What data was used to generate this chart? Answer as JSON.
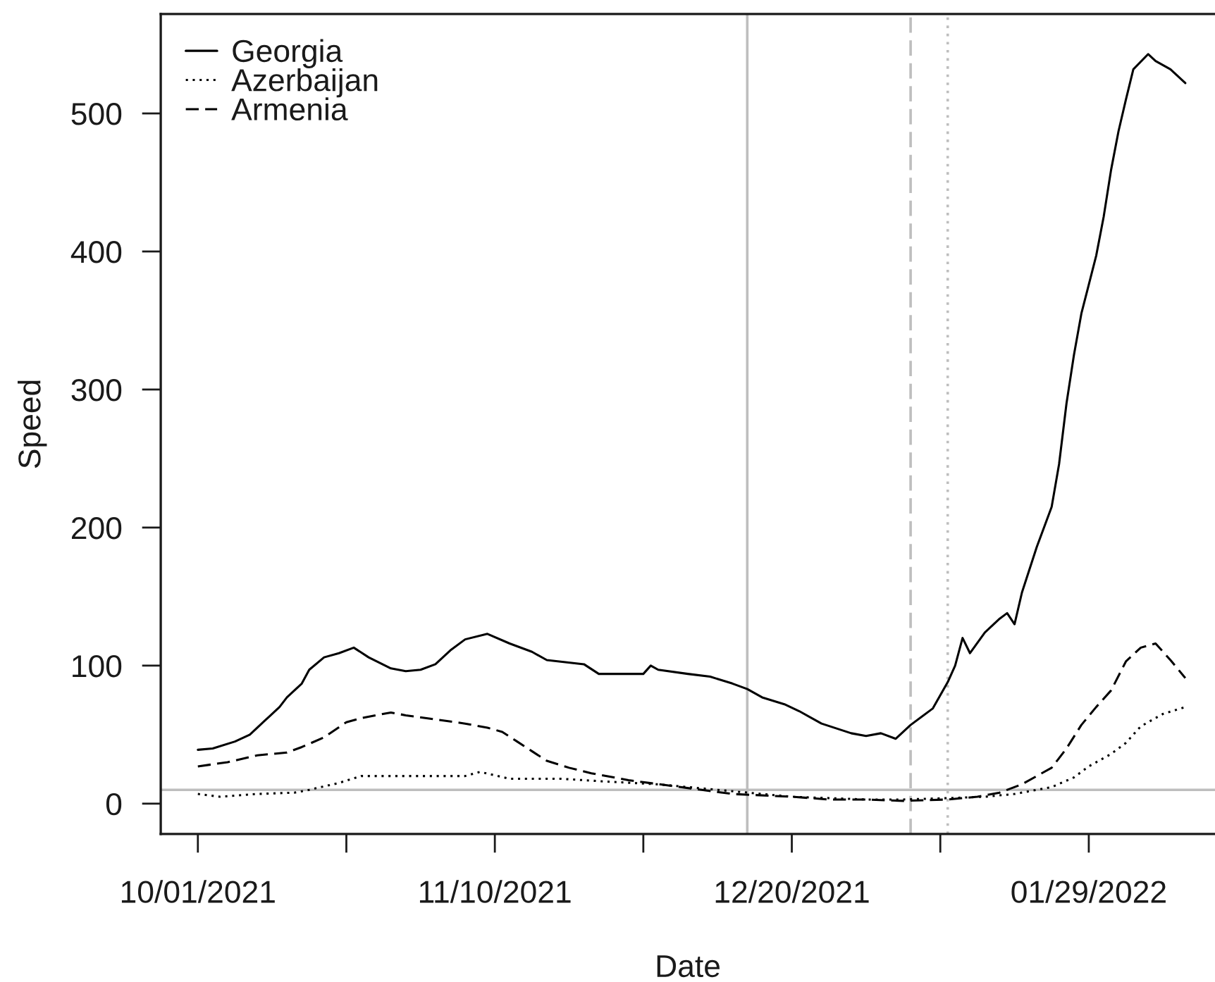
{
  "chart_data": {
    "type": "line",
    "xlabel": "Date",
    "ylabel": "Speed",
    "legend": "top left",
    "xlim": [
      "2021-09-26",
      "2022-02-15"
    ],
    "ylim": [
      -22,
      572
    ],
    "xticks": [
      {
        "value": "2021-10-01",
        "label": "10/01/2021"
      },
      {
        "value": "2021-10-21",
        "label": null
      },
      {
        "value": "2021-11-10",
        "label": "11/10/2021"
      },
      {
        "value": "2021-11-30",
        "label": null
      },
      {
        "value": "2021-12-20",
        "label": "12/20/2021"
      },
      {
        "value": "2022-01-09",
        "label": null
      },
      {
        "value": "2022-01-29",
        "label": "01/29/2022"
      }
    ],
    "yticks": [
      0,
      100,
      200,
      300,
      400,
      500
    ],
    "series": [
      {
        "name": "Georgia",
        "color": "#000000",
        "line_style": "solid",
        "x": [
          "2021-10-01",
          "2021-10-03",
          "2021-10-06",
          "2021-10-08",
          "2021-10-10",
          "2021-10-12",
          "2021-10-13",
          "2021-10-15",
          "2021-10-16",
          "2021-10-18",
          "2021-10-20",
          "2021-10-22",
          "2021-10-24",
          "2021-10-27",
          "2021-10-29",
          "2021-10-31",
          "2021-11-02",
          "2021-11-04",
          "2021-11-06",
          "2021-11-09",
          "2021-11-12",
          "2021-11-15",
          "2021-11-17",
          "2021-11-22",
          "2021-11-24",
          "2021-11-30",
          "2021-12-01",
          "2021-12-02",
          "2021-12-06",
          "2021-12-09",
          "2021-12-12",
          "2021-12-14",
          "2021-12-16",
          "2021-12-19",
          "2021-12-21",
          "2021-12-24",
          "2021-12-28",
          "2021-12-30",
          "2022-01-01",
          "2022-01-03",
          "2022-01-05",
          "2022-01-08",
          "2022-01-10",
          "2022-01-11",
          "2022-01-12",
          "2022-01-13",
          "2022-01-15",
          "2022-01-17",
          "2022-01-18",
          "2022-01-19",
          "2022-01-20",
          "2022-01-22",
          "2022-01-24",
          "2022-01-25",
          "2022-01-26",
          "2022-01-27",
          "2022-01-28",
          "2022-01-29",
          "2022-01-30",
          "2022-01-31",
          "2022-02-01",
          "2022-02-02",
          "2022-02-03",
          "2022-02-04",
          "2022-02-06",
          "2022-02-07",
          "2022-02-09",
          "2022-02-11"
        ],
        "values": [
          39,
          40,
          45,
          50,
          60,
          70,
          77,
          87,
          97,
          106,
          109,
          113,
          106,
          98,
          96,
          97,
          101,
          111,
          119,
          123,
          116,
          110,
          104,
          101,
          94,
          94,
          100,
          97,
          94,
          92,
          87,
          83,
          77,
          72,
          67,
          58,
          51,
          49,
          51,
          47,
          57,
          69,
          88,
          100,
          120,
          109,
          124,
          134,
          138,
          130,
          153,
          186,
          215,
          246,
          290,
          325,
          355,
          376,
          397,
          425,
          459,
          487,
          510,
          532,
          543,
          538,
          532,
          522
        ]
      },
      {
        "name": "Azerbaijan",
        "color": "#000000",
        "line_style": "dotted",
        "x": [
          "2021-10-01",
          "2021-10-04",
          "2021-10-09",
          "2021-10-14",
          "2021-10-16",
          "2021-10-20",
          "2021-10-23",
          "2021-10-29",
          "2021-11-06",
          "2021-11-08",
          "2021-11-12",
          "2021-11-19",
          "2021-11-25",
          "2021-12-02",
          "2021-12-08",
          "2021-12-14",
          "2021-12-20",
          "2021-12-25",
          "2021-12-30",
          "2022-01-04",
          "2022-01-10",
          "2022-01-15",
          "2022-01-19",
          "2022-01-22",
          "2022-01-24",
          "2022-01-27",
          "2022-01-29",
          "2022-02-01",
          "2022-02-03",
          "2022-02-05",
          "2022-02-08",
          "2022-02-11"
        ],
        "values": [
          7,
          5,
          7,
          8,
          10,
          15,
          20,
          20,
          20,
          23,
          18,
          18,
          16,
          14,
          11,
          8,
          5,
          4,
          3,
          3,
          4,
          5,
          7,
          10,
          12,
          19,
          27,
          36,
          44,
          56,
          65,
          70
        ]
      },
      {
        "name": "Armenia",
        "color": "#000000",
        "line_style": "dashed",
        "x": [
          "2021-10-01",
          "2021-10-05",
          "2021-10-09",
          "2021-10-13",
          "2021-10-15",
          "2021-10-18",
          "2021-10-21",
          "2021-10-23",
          "2021-10-27",
          "2021-10-29",
          "2021-11-02",
          "2021-11-06",
          "2021-11-09",
          "2021-11-11",
          "2021-11-13",
          "2021-11-15",
          "2021-11-17",
          "2021-11-20",
          "2021-11-23",
          "2021-11-28",
          "2021-12-05",
          "2021-12-12",
          "2021-12-20",
          "2021-12-25",
          "2021-12-30",
          "2022-01-04",
          "2022-01-10",
          "2022-01-14",
          "2022-01-17",
          "2022-01-20",
          "2022-01-22",
          "2022-01-24",
          "2022-01-26",
          "2022-01-28",
          "2022-01-30",
          "2022-02-01",
          "2022-02-03",
          "2022-02-05",
          "2022-02-07",
          "2022-02-09",
          "2022-02-11"
        ],
        "values": [
          27,
          30,
          35,
          37,
          41,
          48,
          59,
          62,
          66,
          64,
          61,
          58,
          55,
          52,
          45,
          38,
          31,
          26,
          22,
          17,
          12,
          7,
          5,
          3,
          3,
          2,
          3,
          5,
          8,
          14,
          20,
          26,
          40,
          57,
          70,
          82,
          103,
          113,
          116,
          104,
          91
        ]
      }
    ],
    "ref_lines": [
      {
        "axis": "x",
        "value": "2021-12-14",
        "color": "#bebebe",
        "line_style": "solid"
      },
      {
        "axis": "x",
        "value": "2022-01-05",
        "color": "#bebebe",
        "line_style": "dashed"
      },
      {
        "axis": "x",
        "value": "2022-01-10",
        "color": "#bebebe",
        "line_style": "dotted"
      },
      {
        "axis": "y",
        "value": 10,
        "color": "#bebebe",
        "line_style": "solid"
      }
    ]
  }
}
